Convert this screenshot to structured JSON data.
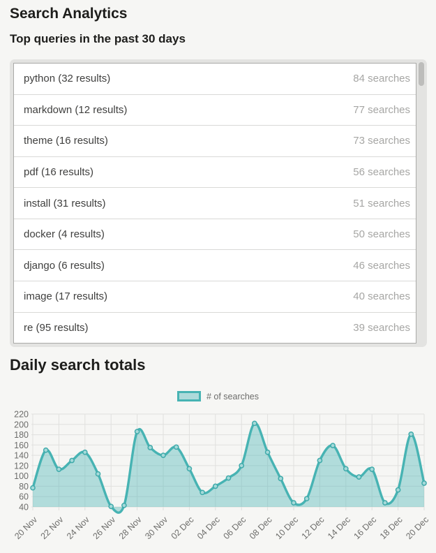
{
  "header": {
    "title": "Search Analytics",
    "subtitle": "Top queries in the past 30 days"
  },
  "top_queries": {
    "rows": [
      {
        "label": "python (32 results)",
        "count": "84 searches"
      },
      {
        "label": "markdown (12 results)",
        "count": "77 searches"
      },
      {
        "label": "theme (16 results)",
        "count": "73 searches"
      },
      {
        "label": "pdf (16 results)",
        "count": "56 searches"
      },
      {
        "label": "install (31 results)",
        "count": "51 searches"
      },
      {
        "label": "docker (4 results)",
        "count": "50 searches"
      },
      {
        "label": "django (6 results)",
        "count": "46 searches"
      },
      {
        "label": "image (17 results)",
        "count": "40 searches"
      },
      {
        "label": "re (95 results)",
        "count": "39 searches"
      }
    ]
  },
  "chart_data": {
    "type": "area",
    "title": "Daily search totals",
    "x": [
      "20 Nov",
      "21 Nov",
      "22 Nov",
      "23 Nov",
      "24 Nov",
      "25 Nov",
      "26 Nov",
      "27 Nov",
      "28 Nov",
      "29 Nov",
      "30 Nov",
      "01 Dec",
      "02 Dec",
      "03 Dec",
      "04 Dec",
      "05 Dec",
      "06 Dec",
      "07 Dec",
      "08 Dec",
      "09 Dec",
      "10 Dec",
      "11 Dec",
      "12 Dec",
      "13 Dec",
      "14 Dec",
      "15 Dec",
      "16 Dec",
      "17 Dec",
      "18 Dec",
      "19 Dec",
      "20 Dec"
    ],
    "series": [
      {
        "name": "# of searches",
        "values": [
          77,
          150,
          113,
          130,
          146,
          104,
          41,
          43,
          186,
          155,
          140,
          156,
          114,
          68,
          80,
          96,
          120,
          202,
          146,
          95,
          48,
          56,
          130,
          159,
          114,
          98,
          113,
          48,
          73,
          181,
          86
        ]
      }
    ],
    "xtick_every": 2,
    "ylim": [
      40,
      220
    ],
    "ytick_step": 20,
    "grid": true,
    "legend_position": "top-center",
    "colors": {
      "line": "#47b3b3",
      "fill": "rgba(81,184,184,0.42)",
      "point_fill": "#a5dada",
      "point_stroke": "#3faaaa",
      "grid": "#e0e0de",
      "tick_text": "#6d6d6b"
    }
  }
}
